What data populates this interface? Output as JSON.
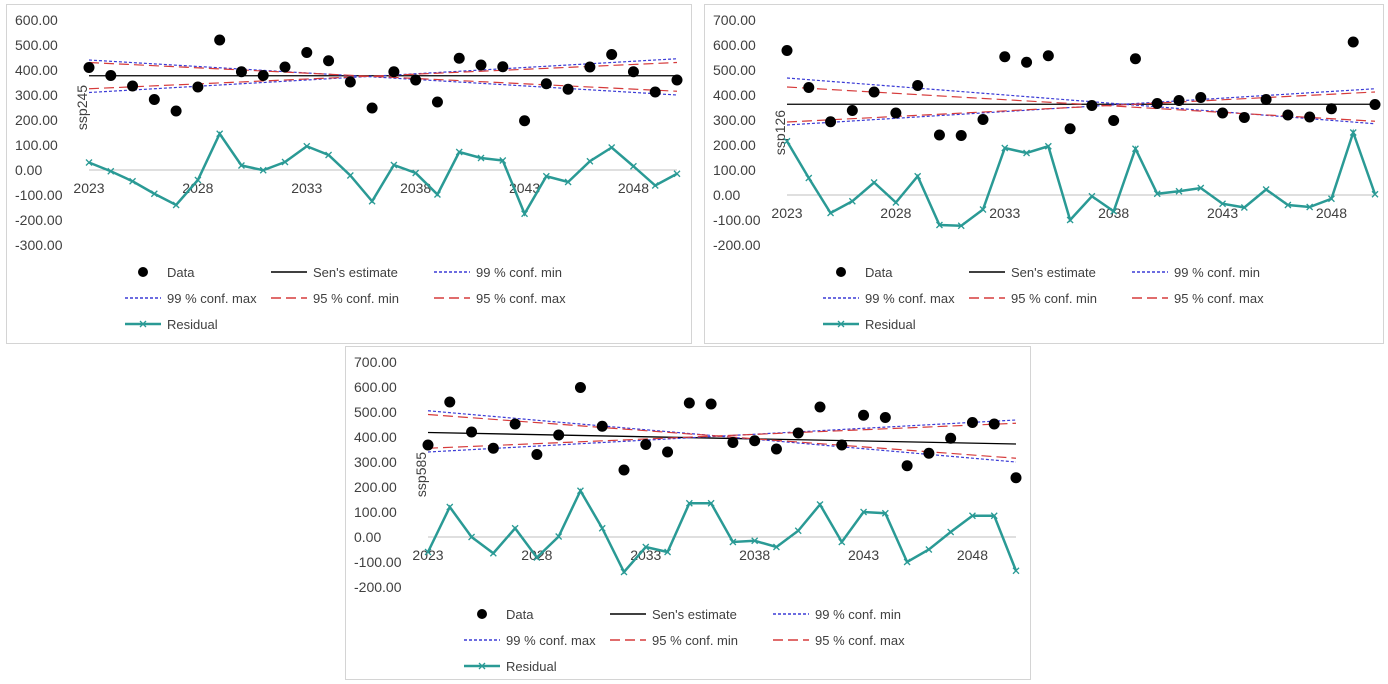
{
  "legend": {
    "data": "Data",
    "sen": "Sen's estimate",
    "conf99min": "99 % conf. min",
    "conf99max": "99 % conf. max",
    "conf95min": "95 % conf. min",
    "conf95max": "95 % conf. max",
    "residual": "Residual"
  },
  "colors": {
    "data": "#000000",
    "sen": "#000000",
    "conf99": "#3b3bd6",
    "conf95": "#d63b3b",
    "residual": "#2a9a95",
    "axis_text": "#404040",
    "border": "#d4d4d4"
  },
  "chart_data": [
    {
      "type": "scatter",
      "ylabel": "ssp245",
      "xlabel": "",
      "ylim": [
        -300,
        600
      ],
      "y_ticks": [
        "600.00",
        "500.00",
        "400.00",
        "300.00",
        "200.00",
        "100.00",
        "0.00",
        "-100.00",
        "-200.00",
        "-300.00"
      ],
      "x_ticks": [
        "2023",
        "2028",
        "2033",
        "2038",
        "2043",
        "2048"
      ],
      "legend_position": "bottom",
      "x": [
        2023,
        2024,
        2025,
        2026,
        2027,
        2028,
        2029,
        2030,
        2031,
        2032,
        2033,
        2034,
        2035,
        2036,
        2037,
        2038,
        2039,
        2040,
        2041,
        2042,
        2043,
        2044,
        2045,
        2046,
        2047,
        2048,
        2049,
        2050
      ],
      "data": [
        410,
        378,
        336,
        282,
        236,
        332,
        520,
        393,
        378,
        412,
        470,
        437,
        352,
        248,
        393,
        360,
        272,
        447,
        420,
        413,
        197,
        345,
        323,
        412,
        462,
        393,
        312,
        360
      ],
      "residual": [
        30,
        -5,
        -45,
        -95,
        -140,
        -40,
        145,
        18,
        -1,
        32,
        95,
        60,
        -22,
        -125,
        20,
        -12,
        -98,
        72,
        48,
        38,
        -175,
        -25,
        -48,
        35,
        90,
        15,
        -62,
        -15
      ],
      "sen": [
        377,
        377
      ],
      "conf99min": [
        310,
        445
      ],
      "conf99max": [
        440,
        300
      ],
      "conf95min": [
        325,
        430
      ],
      "conf95max": [
        430,
        315
      ]
    },
    {
      "type": "scatter",
      "ylabel": "ssp126",
      "xlabel": "",
      "ylim": [
        -200,
        700
      ],
      "y_ticks": [
        "700.00",
        "600.00",
        "500.00",
        "400.00",
        "300.00",
        "200.00",
        "100.00",
        "0.00",
        "-100.00",
        "-200.00"
      ],
      "x_ticks": [
        "2023",
        "2028",
        "2033",
        "2038",
        "2043",
        "2048"
      ],
      "legend_position": "bottom",
      "x": [
        2023,
        2024,
        2025,
        2026,
        2027,
        2028,
        2029,
        2030,
        2031,
        2032,
        2033,
        2034,
        2035,
        2036,
        2037,
        2038,
        2039,
        2040,
        2041,
        2042,
        2043,
        2044,
        2045,
        2046,
        2047,
        2048,
        2049,
        2050
      ],
      "data": [
        578,
        430,
        293,
        338,
        412,
        328,
        438,
        240,
        238,
        302,
        553,
        531,
        557,
        265,
        358,
        298,
        545,
        366,
        378,
        390,
        328,
        310,
        382,
        320,
        312,
        345,
        612,
        362
      ],
      "residual": [
        215,
        68,
        -72,
        -25,
        50,
        -30,
        75,
        -120,
        -123,
        -58,
        188,
        168,
        195,
        -100,
        -5,
        -65,
        185,
        5,
        15,
        28,
        -35,
        -50,
        22,
        -40,
        -48,
        -15,
        250,
        3
      ],
      "sen": [
        363,
        363
      ],
      "conf99min": [
        280,
        425
      ],
      "conf99max": [
        468,
        285
      ],
      "conf95min": [
        292,
        412
      ],
      "conf95max": [
        432,
        295
      ]
    },
    {
      "type": "scatter",
      "ylabel": "ssp585",
      "xlabel": "",
      "ylim": [
        -200,
        700
      ],
      "y_ticks": [
        "700.00",
        "600.00",
        "500.00",
        "400.00",
        "300.00",
        "200.00",
        "100.00",
        "0.00",
        "-100.00",
        "-200.00"
      ],
      "x_ticks": [
        "2023",
        "2028",
        "2033",
        "2038",
        "2043",
        "2048"
      ],
      "legend_position": "bottom",
      "x": [
        2023,
        2024,
        2025,
        2026,
        2027,
        2028,
        2029,
        2030,
        2031,
        2032,
        2033,
        2034,
        2035,
        2036,
        2037,
        2038,
        2039,
        2040,
        2041,
        2042,
        2043,
        2044,
        2045,
        2046,
        2047,
        2048,
        2049,
        2050
      ],
      "data": [
        368,
        540,
        420,
        355,
        452,
        330,
        408,
        598,
        443,
        268,
        370,
        340,
        536,
        532,
        378,
        385,
        352,
        416,
        520,
        368,
        487,
        478,
        285,
        335,
        395,
        458,
        452,
        237
      ],
      "residual": [
        -60,
        120,
        0,
        -65,
        35,
        -82,
        2,
        185,
        35,
        -140,
        -40,
        -60,
        135,
        135,
        -20,
        -15,
        -40,
        25,
        130,
        -20,
        100,
        95,
        -100,
        -50,
        20,
        85,
        85,
        -135
      ],
      "sen": [
        418,
        372
      ],
      "conf99min": [
        340,
        468
      ],
      "conf99max": [
        505,
        300
      ],
      "conf95min": [
        355,
        455
      ],
      "conf95max": [
        490,
        315
      ]
    }
  ]
}
